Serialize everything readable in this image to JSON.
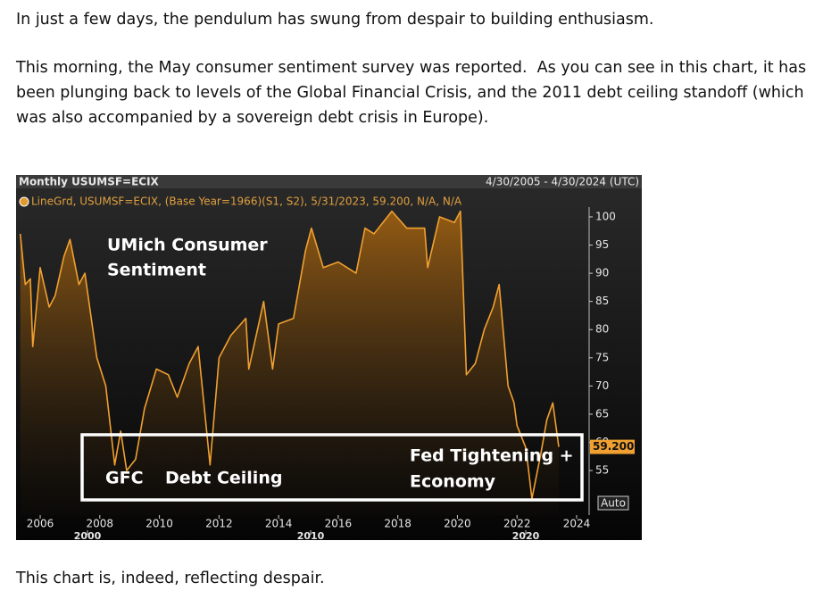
{
  "paragraphs": [
    "In just a few days, the pendulum has swung from despair to building enthusiasm.",
    "This morning, the May consumer sentiment survey was reported.  As you can see in this chart, it has been plunging back to levels of the Global Financial Crisis, and the 2011 debt ceiling standoff (which was also accompanied by a sovereign debt crisis in Europe).",
    "This chart is, indeed, reflecting despair."
  ],
  "chart_data": {
    "type": "line",
    "header": "Monthly USUMSF=ECIX",
    "date_range": "4/30/2005 - 4/30/2024 (UTC)",
    "legend_text": "LineGrd, USUMSF=ECIX, (Base Year=1966)(S1, S2), 5/31/2023, 59.200, N/A, N/A",
    "annotations": [
      "UMich Consumer",
      "Sentiment",
      "GFC",
      "Debt Ceiling",
      "Fed Tightening +",
      "Economy"
    ],
    "last_value_label": "59.200",
    "auto_button": "Auto",
    "x": [
      2005.33,
      2005.5,
      2005.67,
      2005.75,
      2006.0,
      2006.3,
      2006.5,
      2006.8,
      2007.0,
      2007.3,
      2007.5,
      2007.9,
      2008.2,
      2008.5,
      2008.7,
      2008.9,
      2009.2,
      2009.5,
      2009.9,
      2010.3,
      2010.6,
      2011.0,
      2011.3,
      2011.7,
      2012.0,
      2012.4,
      2012.9,
      2013.0,
      2013.5,
      2013.8,
      2014.0,
      2014.5,
      2014.9,
      2015.1,
      2015.5,
      2016.0,
      2016.6,
      2016.9,
      2017.2,
      2017.8,
      2018.3,
      2018.9,
      2019.0,
      2019.4,
      2019.9,
      2020.1,
      2020.3,
      2020.6,
      2020.9,
      2021.2,
      2021.4,
      2021.7,
      2021.9,
      2022.0,
      2022.3,
      2022.5,
      2022.8,
      2023.0,
      2023.2,
      2023.4
    ],
    "series": [
      {
        "name": "USUMSF=ECIX",
        "color": "#f0a030",
        "values": [
          97,
          88,
          89,
          77,
          91,
          84,
          86,
          93,
          96,
          88,
          90,
          75,
          70,
          56,
          62,
          55,
          57,
          66,
          73,
          72,
          68,
          74,
          77,
          56,
          75,
          79,
          82,
          73,
          85,
          73,
          81,
          82,
          94,
          98,
          91,
          92,
          90,
          98,
          97,
          101,
          98,
          98,
          91,
          100,
          99,
          101,
          72,
          74,
          80,
          84,
          88,
          70,
          67,
          63,
          59,
          50,
          58,
          64,
          67,
          59.2
        ]
      }
    ],
    "xlim": [
      2005.25,
      2024.27
    ],
    "ylim": [
      47.1,
      104.9
    ],
    "xticks": [
      2006,
      2008,
      2010,
      2012,
      2014,
      2016,
      2018,
      2020,
      2022,
      2024
    ],
    "yticks": [
      55,
      60,
      65,
      70,
      75,
      80,
      85,
      90,
      95,
      100
    ],
    "x_decade_labels": [
      "2000",
      "2010",
      "2020"
    ]
  }
}
